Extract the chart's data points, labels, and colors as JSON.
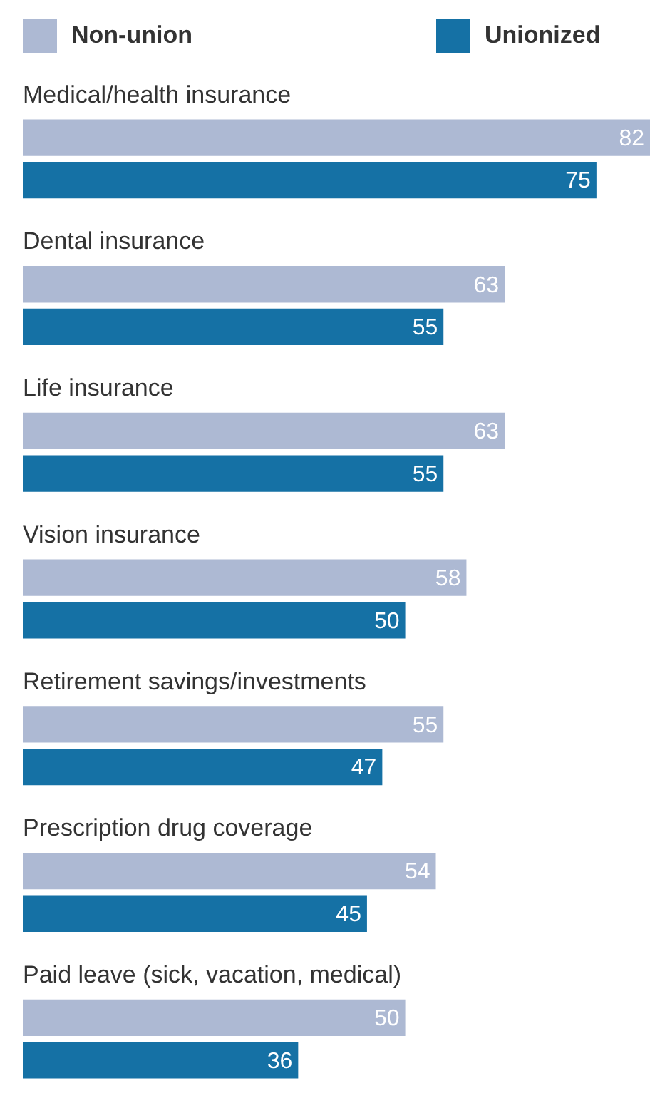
{
  "chart_data": {
    "type": "bar",
    "orientation": "horizontal",
    "categories": [
      "Medical/health insurance",
      "Dental insurance",
      "Life insurance",
      "Vision insurance",
      "Retirement savings/investments",
      "Prescription drug coverage",
      "Paid leave (sick, vacation, medical)"
    ],
    "series": [
      {
        "name": "Non-union",
        "color": "#adb9d3",
        "values": [
          82,
          63,
          63,
          58,
          55,
          54,
          50
        ]
      },
      {
        "name": "Unionized",
        "color": "#1571a5",
        "values": [
          75,
          55,
          55,
          50,
          47,
          45,
          36
        ]
      }
    ],
    "data_labels": true,
    "legend": "top"
  }
}
